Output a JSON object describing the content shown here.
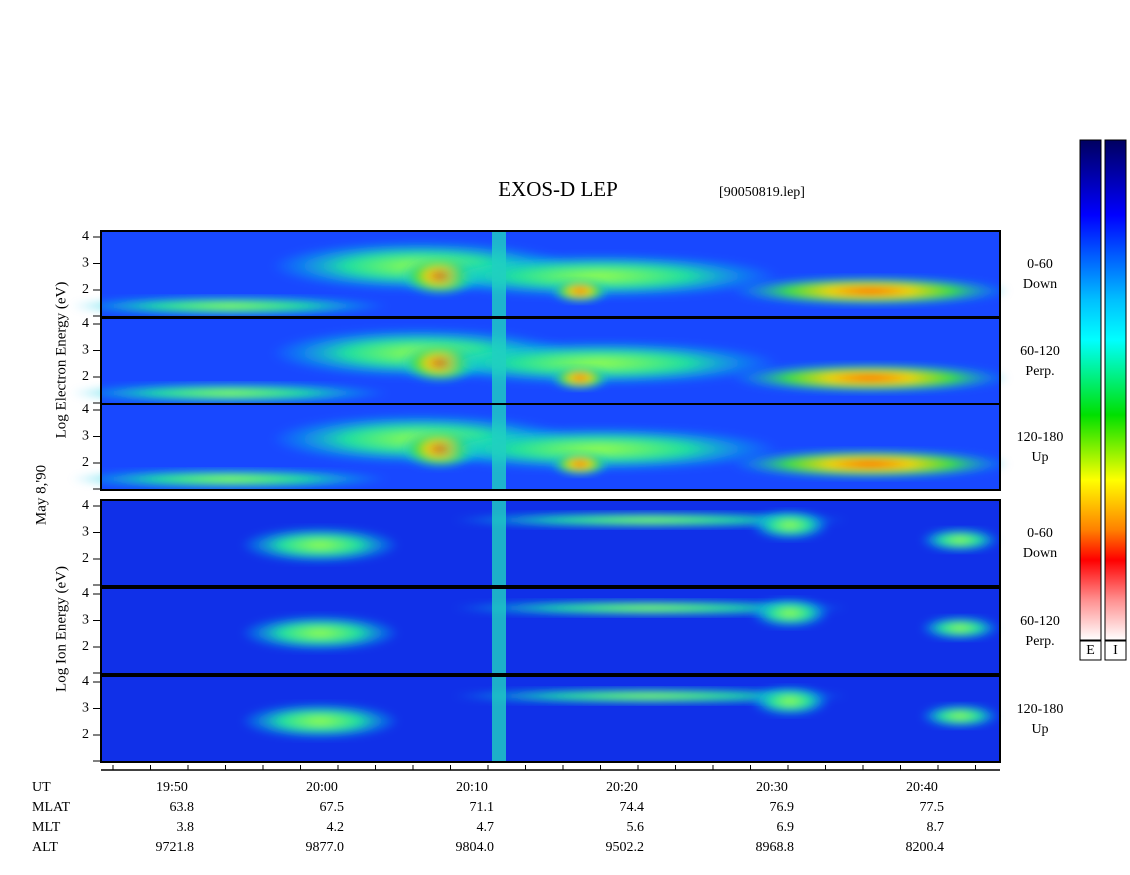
{
  "title": "EXOS-D LEP",
  "file": "[90050819.lep]",
  "date": "May 8,'90",
  "groups": [
    {
      "label": "Log Electron Energy (eV)",
      "panels": [
        {
          "angle": "0-60",
          "direction": "Down"
        },
        {
          "angle": "60-120",
          "direction": "Perp."
        },
        {
          "angle": "120-180",
          "direction": "Up"
        }
      ]
    },
    {
      "label": "Log Ion Energy (eV)",
      "panels": [
        {
          "angle": "0-60",
          "direction": "Down"
        },
        {
          "angle": "60-120",
          "direction": "Perp."
        },
        {
          "angle": "120-180",
          "direction": "Up"
        }
      ]
    }
  ],
  "energy_ticks": [
    4,
    3,
    2
  ],
  "ephemeris": [
    {
      "label": "UT",
      "values": [
        "19:50",
        "20:00",
        "20:10",
        "20:20",
        "20:30",
        "20:40"
      ]
    },
    {
      "label": "MLAT",
      "values": [
        "63.8",
        "67.5",
        "71.1",
        "74.4",
        "76.9",
        "77.5"
      ]
    },
    {
      "label": "MLT",
      "values": [
        "3.8",
        "4.2",
        "4.7",
        "5.6",
        "6.9",
        "8.7"
      ]
    },
    {
      "label": "ALT",
      "values": [
        "9721.8",
        "9877.0",
        "9804.0",
        "9502.2",
        "8968.8",
        "8200.4"
      ]
    }
  ],
  "colorbars": [
    "E",
    "I"
  ]
}
